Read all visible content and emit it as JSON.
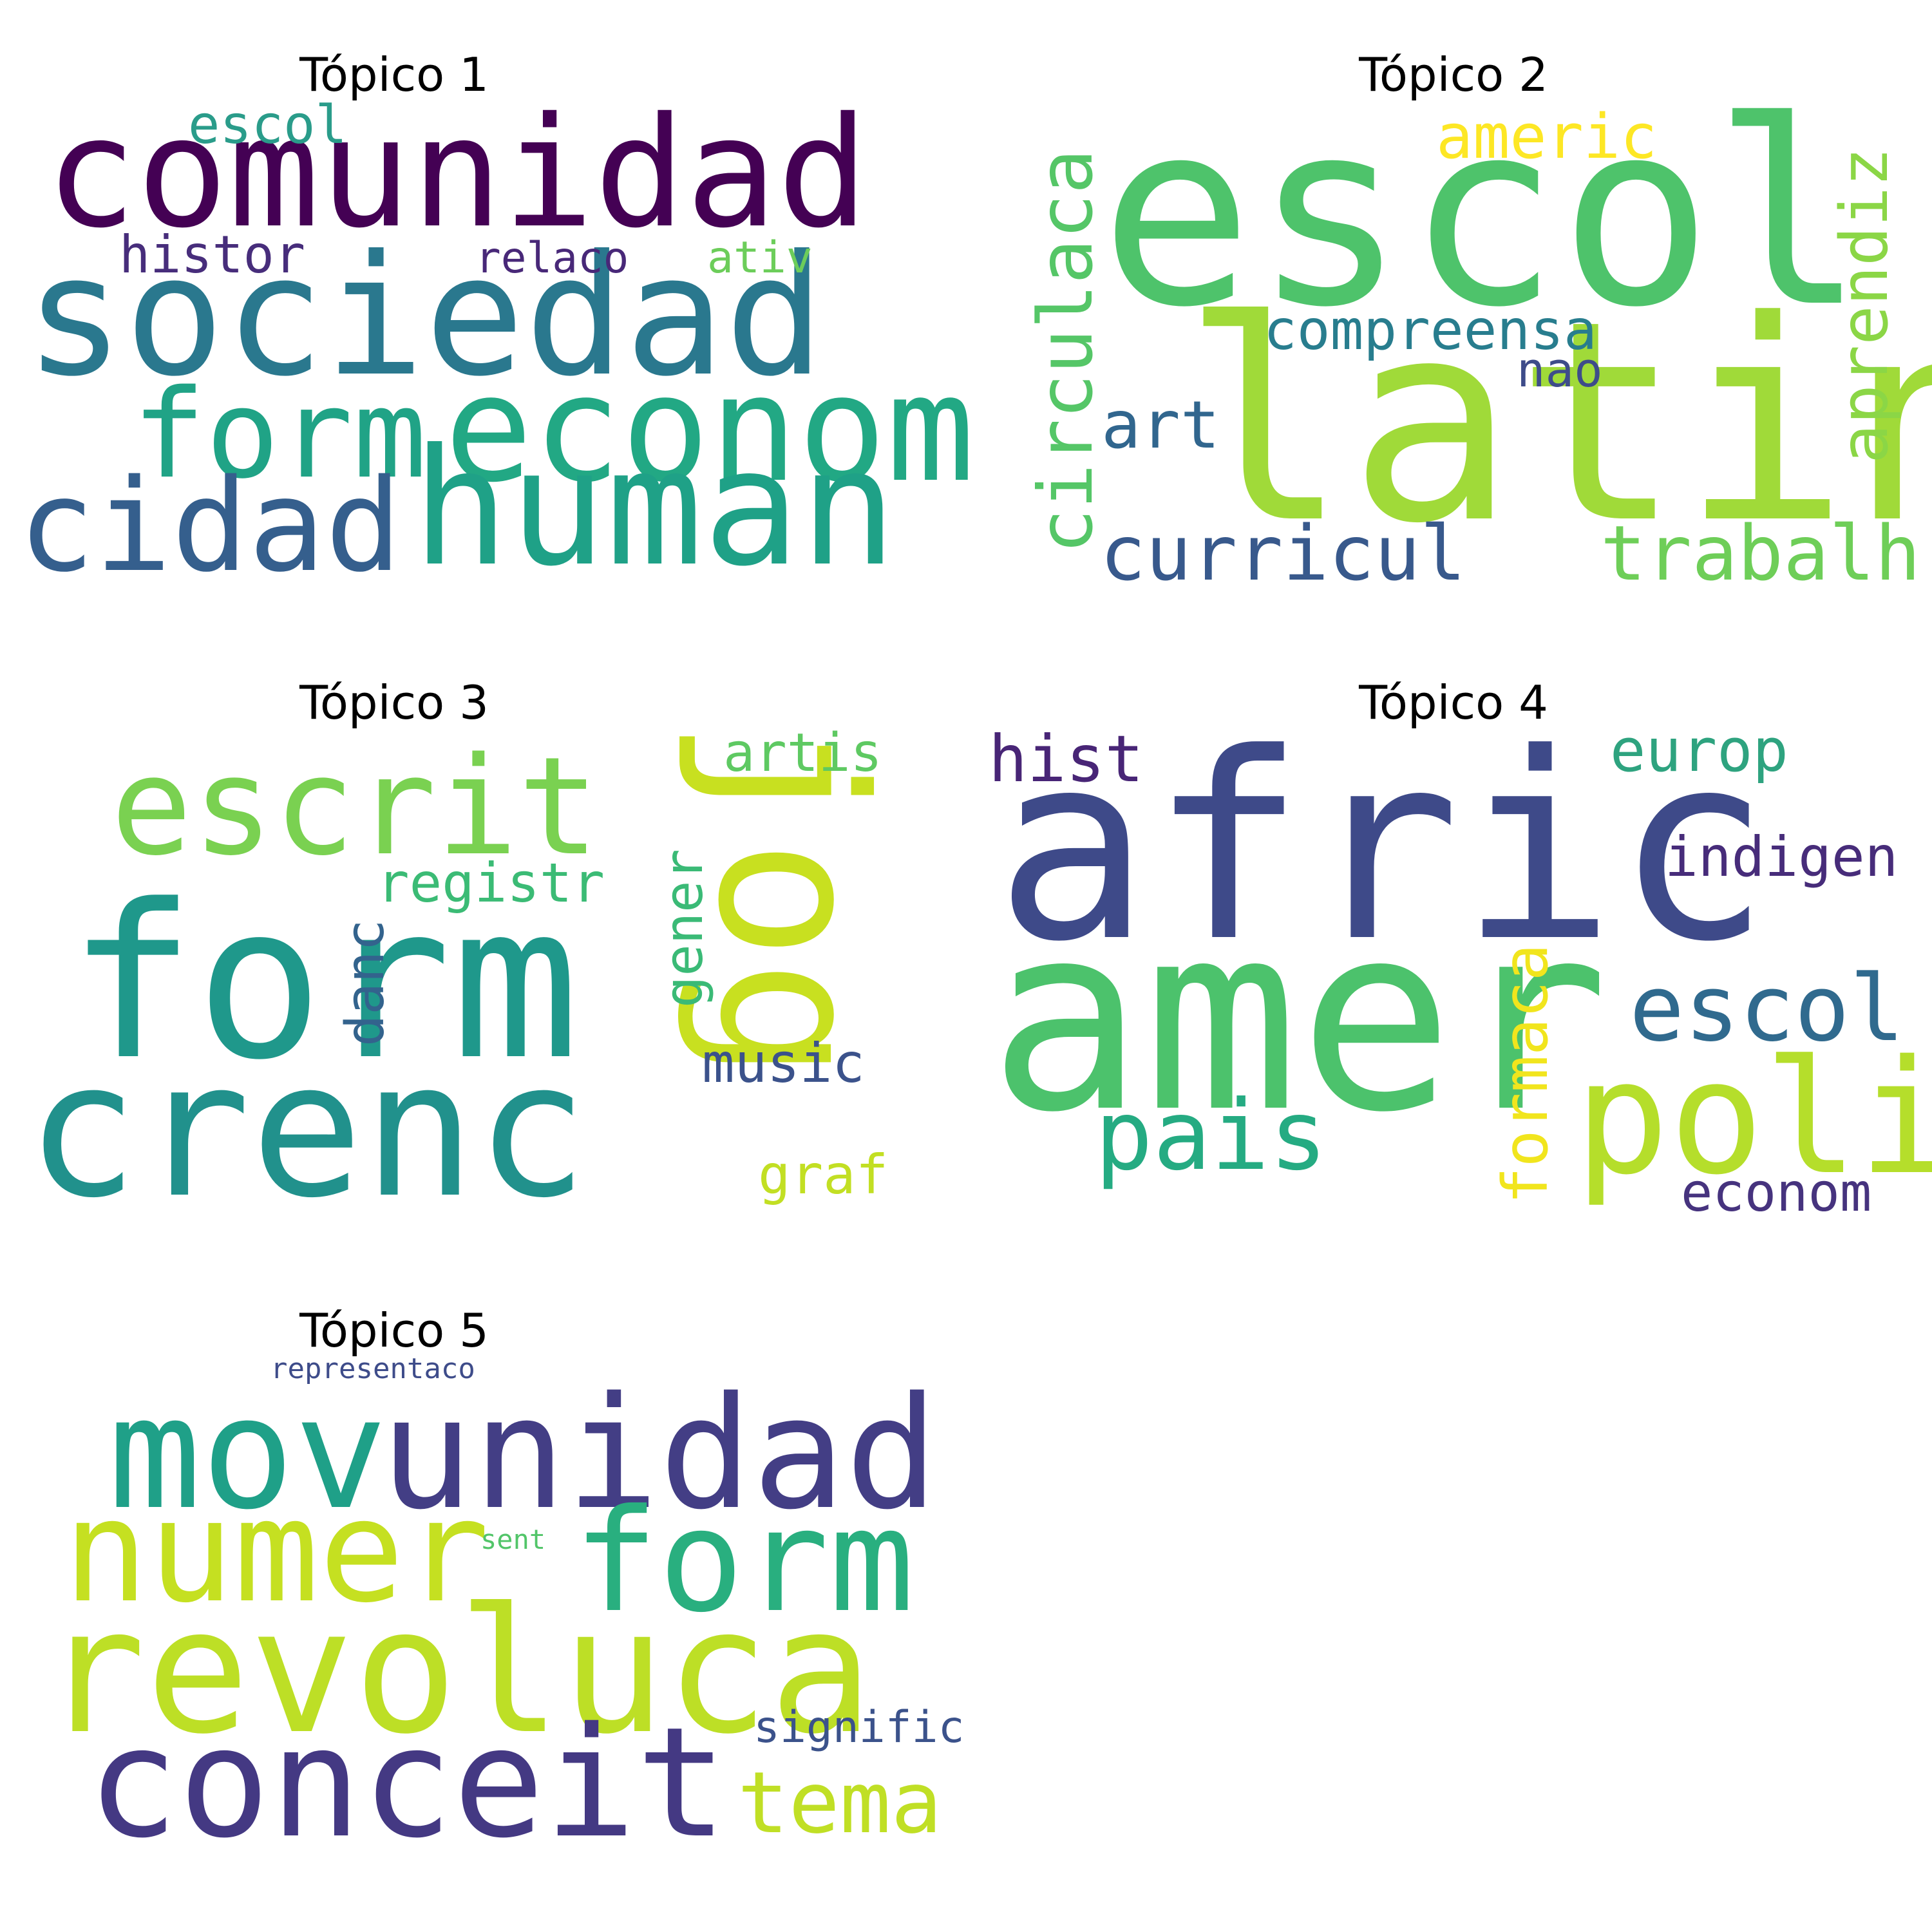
{
  "topics": [
    {
      "title": "Tópico 1",
      "words": [
        {
          "text": "comunidad",
          "color": "#440154"
        },
        {
          "text": "sociedad",
          "color": "#2a788e"
        },
        {
          "text": "econom",
          "color": "#22a884"
        },
        {
          "text": "form",
          "color": "#20a386"
        },
        {
          "text": "human",
          "color": "#1fa187"
        },
        {
          "text": "cidad",
          "color": "#355f8d"
        },
        {
          "text": "escol",
          "color": "#2a9c8a"
        },
        {
          "text": "histor",
          "color": "#472d7b"
        },
        {
          "text": "relaco",
          "color": "#482878"
        },
        {
          "text": "ativ",
          "color": "#6ccd5a"
        }
      ]
    },
    {
      "title": "Tópico 2",
      "words": [
        {
          "text": "escol",
          "color": "#4ec36b"
        },
        {
          "text": "latin",
          "color": "#a0da39"
        },
        {
          "text": "americ",
          "color": "#fde725"
        },
        {
          "text": "circulaca",
          "color": "#55c667"
        },
        {
          "text": "aprendiz",
          "color": "#8bd646"
        },
        {
          "text": "compreensa",
          "color": "#287d8e"
        },
        {
          "text": "nao",
          "color": "#3e4c8a"
        },
        {
          "text": "art",
          "color": "#31668e"
        },
        {
          "text": "curricul",
          "color": "#38598c"
        },
        {
          "text": "trabalh",
          "color": "#6ece58"
        }
      ]
    },
    {
      "title": "Tópico 3",
      "words": [
        {
          "text": "escrit",
          "color": "#7ad151"
        },
        {
          "text": "jog",
          "color": "#c8e020"
        },
        {
          "text": "artis",
          "color": "#5ec962"
        },
        {
          "text": "registr",
          "color": "#3bbb75"
        },
        {
          "text": "form",
          "color": "#1f988b"
        },
        {
          "text": "gener",
          "color": "#3aba76"
        },
        {
          "text": "danc",
          "color": "#33638d"
        },
        {
          "text": "crenc",
          "color": "#21918c"
        },
        {
          "text": "music",
          "color": "#3b528b"
        },
        {
          "text": "graf",
          "color": "#c2df23"
        }
      ]
    },
    {
      "title": "Tópico 4",
      "words": [
        {
          "text": "hist",
          "color": "#482576"
        },
        {
          "text": "afric",
          "color": "#3e4a89"
        },
        {
          "text": "europ",
          "color": "#2ea37f"
        },
        {
          "text": "indigen",
          "color": "#472c7a"
        },
        {
          "text": "amer",
          "color": "#4cc26c"
        },
        {
          "text": "escol",
          "color": "#306a8e"
        },
        {
          "text": "pais",
          "color": "#25ab82"
        },
        {
          "text": "formaca",
          "color": "#f1e51d"
        },
        {
          "text": "poli",
          "color": "#b5de2b"
        },
        {
          "text": "econom",
          "color": "#46337e"
        }
      ]
    },
    {
      "title": "Tópico 5",
      "words": [
        {
          "text": "representaco",
          "color": "#3e4c8a"
        },
        {
          "text": "mov",
          "color": "#1fa088"
        },
        {
          "text": "unidad",
          "color": "#433e85"
        },
        {
          "text": "numer",
          "color": "#c5e021"
        },
        {
          "text": "sent",
          "color": "#52c569"
        },
        {
          "text": "form",
          "color": "#29af7f"
        },
        {
          "text": "revoluca",
          "color": "#bddf26"
        },
        {
          "text": "signific",
          "color": "#3b528b"
        },
        {
          "text": "conceit",
          "color": "#443983"
        },
        {
          "text": "tema",
          "color": "#c0df25"
        }
      ]
    }
  ]
}
